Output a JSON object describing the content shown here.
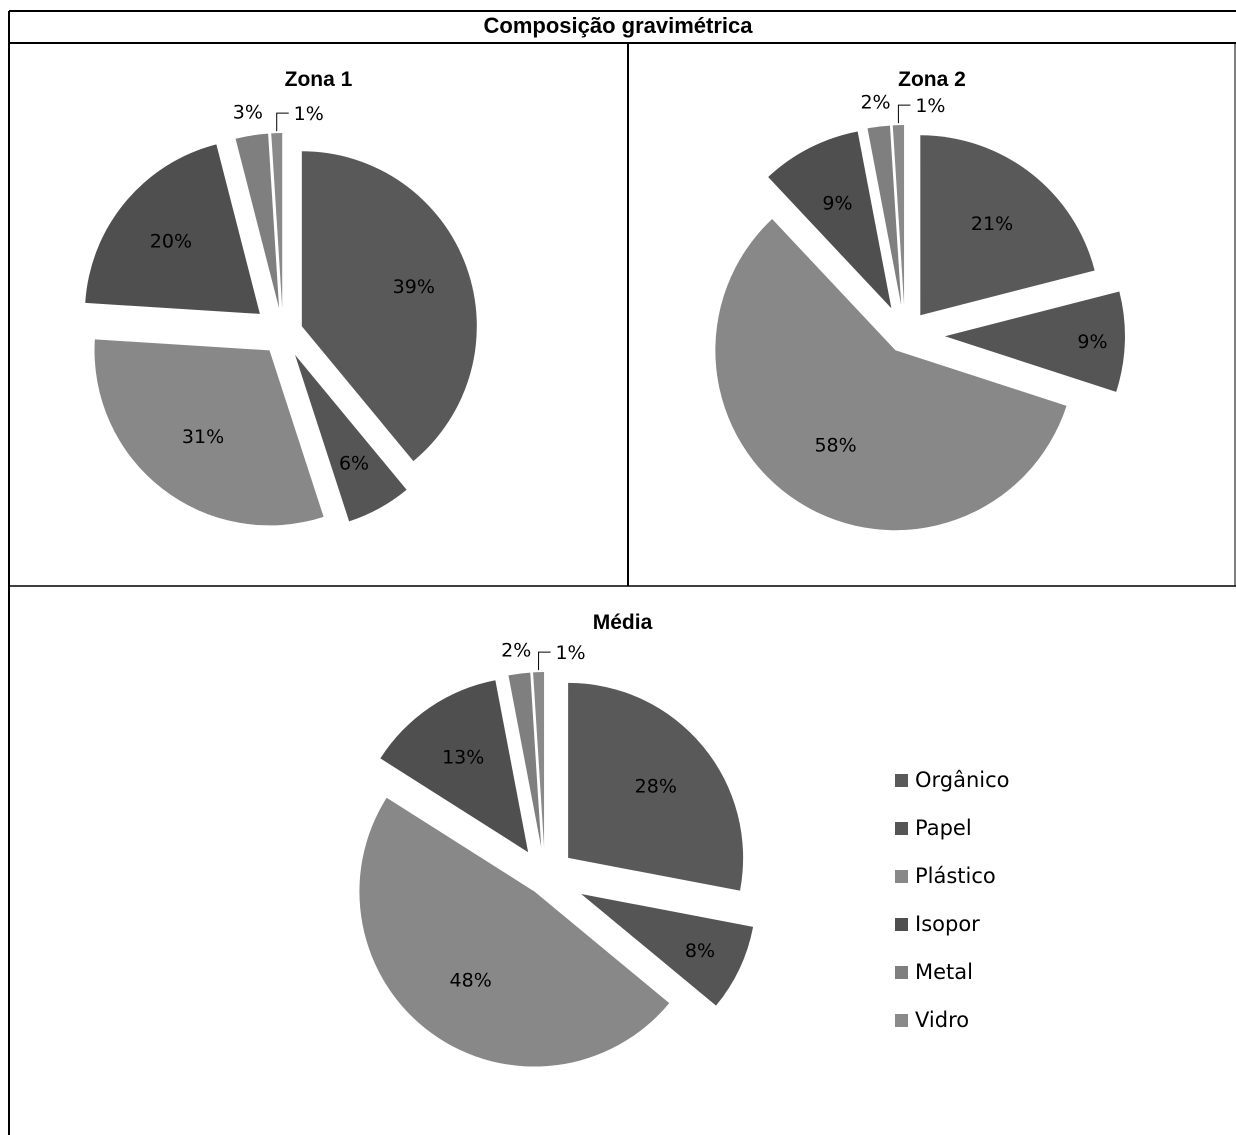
{
  "page_title": "Composição gravimétrica",
  "chart_data": [
    {
      "type": "pie",
      "title": "Zona 1",
      "categories": [
        "Orgânico",
        "Papel",
        "Plástico",
        "Isopor",
        "Metal",
        "Vidro"
      ],
      "values": [
        39,
        6,
        31,
        20,
        3,
        1
      ],
      "labels": [
        "39%",
        "6%",
        "31%",
        "20%",
        "3%",
        "1%"
      ],
      "exploded": true
    },
    {
      "type": "pie",
      "title": "Zona 2",
      "categories": [
        "Orgânico",
        "Papel",
        "Plástico",
        "Isopor",
        "Metal",
        "Vidro"
      ],
      "values": [
        21,
        9,
        58,
        9,
        2,
        1
      ],
      "labels": [
        "21%",
        "9%",
        "58%",
        "9%",
        "2%",
        "1%"
      ],
      "exploded": true
    },
    {
      "type": "pie",
      "title": "Média",
      "categories": [
        "Orgânico",
        "Papel",
        "Plástico",
        "Isopor",
        "Metal",
        "Vidro"
      ],
      "values": [
        28,
        8,
        48,
        13,
        2,
        1
      ],
      "labels": [
        "28%",
        "8%",
        "48%",
        "13%",
        "2%",
        "1%"
      ],
      "exploded": true,
      "legend": {
        "placement": "right",
        "entries": [
          "Orgânico",
          "Papel",
          "Plástico",
          "Isopor",
          "Metal",
          "Vidro"
        ]
      }
    }
  ],
  "colors": {
    "Orgânico": "#595959",
    "Papel": "#555555",
    "Plástico": "#888888",
    "Isopor": "#4f4f4f",
    "Metal": "#7f7f7f",
    "Vidro": "#8a8a8a"
  }
}
